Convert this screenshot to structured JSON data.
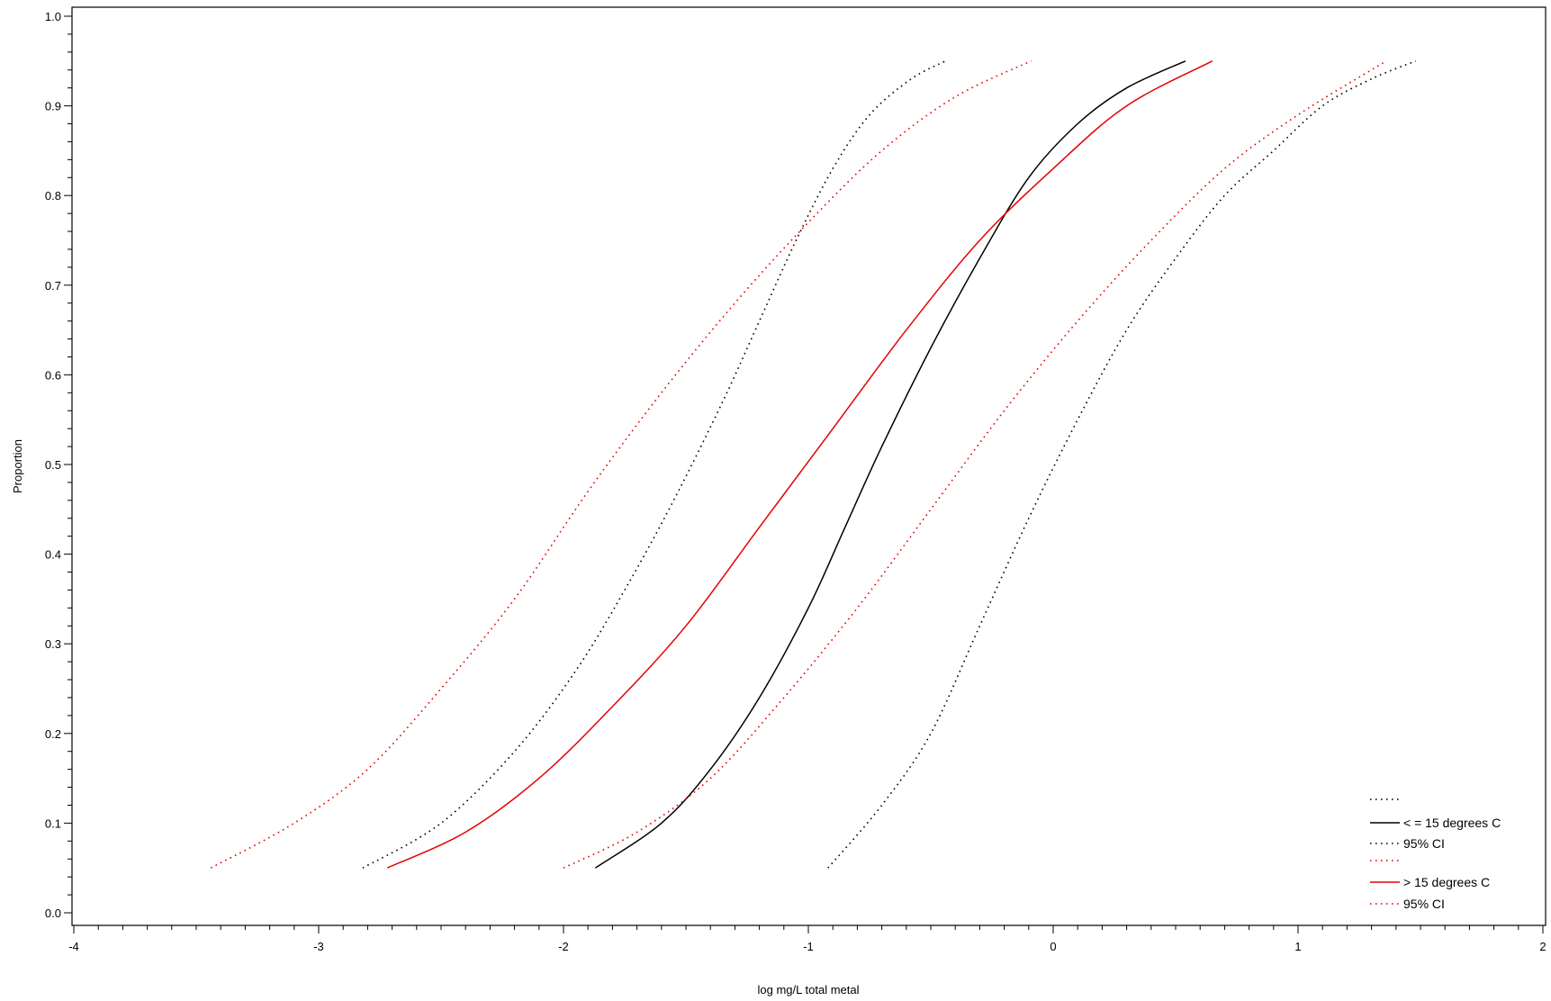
{
  "chart_data": {
    "type": "line",
    "title": "",
    "xlabel": "log mg/L total metal",
    "ylabel": "Proportion",
    "xlim": [
      -4,
      2
    ],
    "ylim": [
      0.0,
      1.0
    ],
    "x_ticks": [
      "-4",
      "-3",
      "-2",
      "-1",
      "0",
      "1",
      "2"
    ],
    "y_ticks": [
      "0.0",
      "0.1",
      "0.2",
      "0.3",
      "0.4",
      "0.5",
      "0.6",
      "0.7",
      "0.8",
      "0.9",
      "1.0"
    ],
    "grid": false,
    "legend_position": "bottom-right",
    "series": [
      {
        "name": "",
        "color": "#000000",
        "style": "dotted",
        "x": [
          -2.82,
          -2.5,
          -2.2,
          -1.95,
          -1.75,
          -1.55,
          -1.35,
          -1.2,
          -1.05,
          -0.9,
          -0.75,
          -0.58,
          -0.44
        ],
        "y": [
          0.05,
          0.1,
          0.18,
          0.27,
          0.36,
          0.46,
          0.57,
          0.66,
          0.75,
          0.83,
          0.89,
          0.93,
          0.95
        ]
      },
      {
        "name": "< = 15 degrees C",
        "color": "#000000",
        "style": "solid",
        "x": [
          -1.87,
          -1.6,
          -1.4,
          -1.2,
          -1.0,
          -0.85,
          -0.7,
          -0.5,
          -0.3,
          -0.1,
          0.1,
          0.3,
          0.54
        ],
        "y": [
          0.05,
          0.1,
          0.16,
          0.24,
          0.34,
          0.43,
          0.52,
          0.63,
          0.73,
          0.82,
          0.88,
          0.92,
          0.95
        ]
      },
      {
        "name": "95% CI",
        "color": "#000000",
        "style": "dotted",
        "x": [
          -0.92,
          -0.7,
          -0.5,
          -0.3,
          -0.1,
          0.1,
          0.3,
          0.5,
          0.7,
          0.9,
          1.1,
          1.3,
          1.48
        ],
        "y": [
          0.05,
          0.12,
          0.2,
          0.32,
          0.44,
          0.55,
          0.65,
          0.73,
          0.8,
          0.85,
          0.9,
          0.93,
          0.95
        ]
      },
      {
        "name": "",
        "color": "#e60000",
        "style": "dotted",
        "x": [
          -3.44,
          -3.1,
          -2.8,
          -2.5,
          -2.2,
          -1.9,
          -1.6,
          -1.3,
          -1.0,
          -0.7,
          -0.4,
          -0.09
        ],
        "y": [
          0.05,
          0.1,
          0.16,
          0.25,
          0.35,
          0.47,
          0.58,
          0.68,
          0.77,
          0.85,
          0.91,
          0.95
        ]
      },
      {
        "name": "> 15 degrees C",
        "color": "#e60000",
        "style": "solid",
        "x": [
          -2.72,
          -2.4,
          -2.1,
          -1.8,
          -1.5,
          -1.2,
          -0.9,
          -0.6,
          -0.3,
          0.0,
          0.3,
          0.65
        ],
        "y": [
          0.05,
          0.09,
          0.15,
          0.23,
          0.32,
          0.43,
          0.54,
          0.65,
          0.75,
          0.83,
          0.9,
          0.95
        ]
      },
      {
        "name": "95% CI",
        "color": "#e60000",
        "style": "dotted",
        "x": [
          -2.0,
          -1.7,
          -1.4,
          -1.1,
          -0.8,
          -0.5,
          -0.2,
          0.1,
          0.4,
          0.7,
          1.0,
          1.36
        ],
        "y": [
          0.05,
          0.09,
          0.15,
          0.24,
          0.34,
          0.45,
          0.56,
          0.66,
          0.75,
          0.83,
          0.89,
          0.95
        ]
      }
    ]
  }
}
